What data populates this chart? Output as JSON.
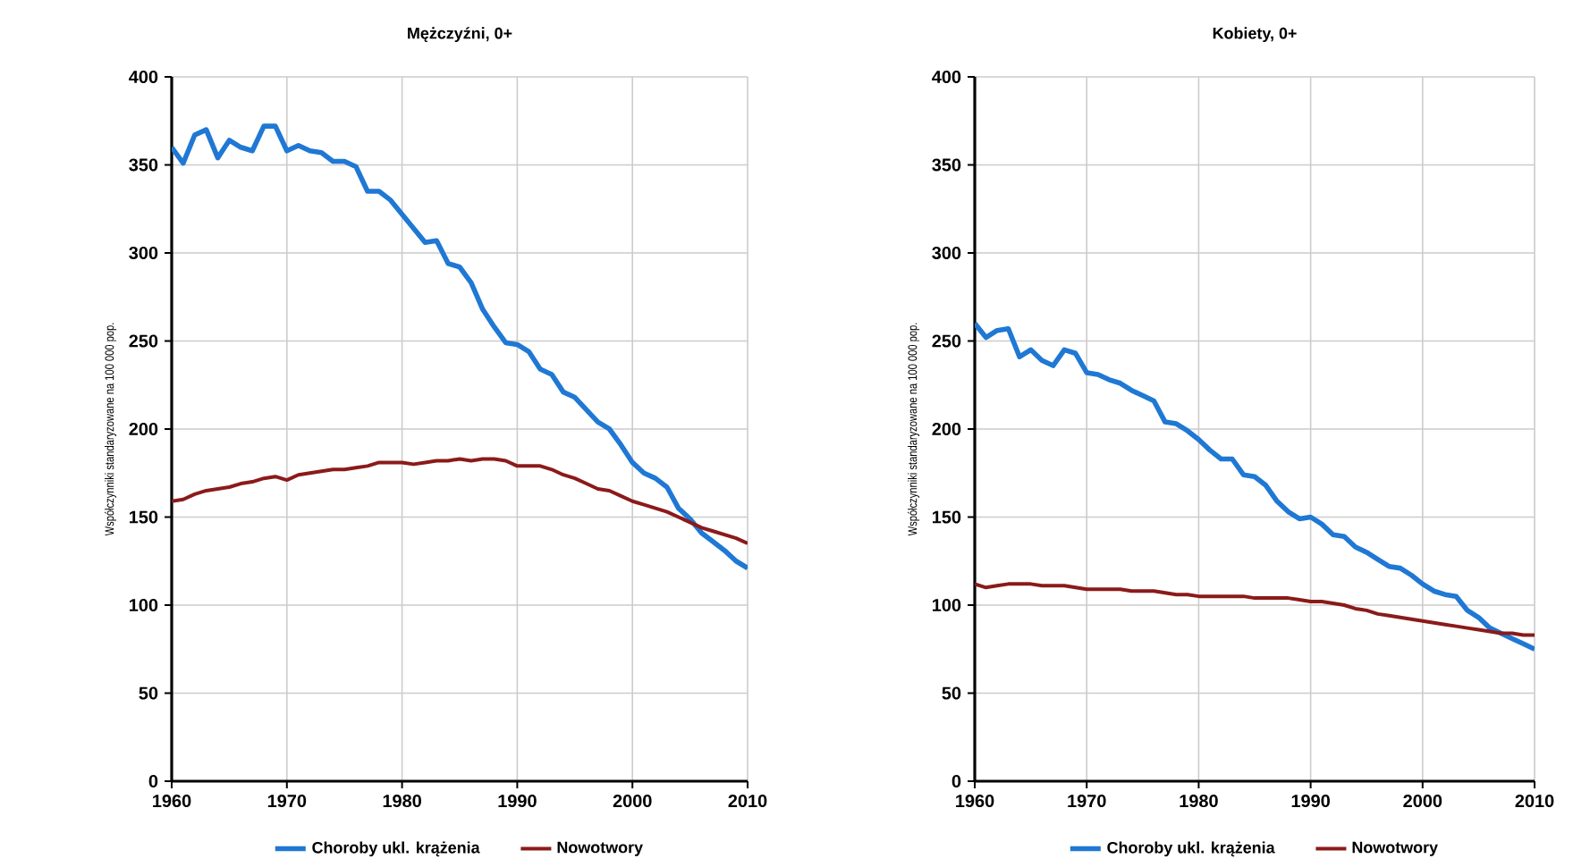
{
  "chart_data": [
    {
      "type": "line",
      "title": "Mężczyźni, 0+",
      "ylabel": "Współczynniki standaryzowane na 100 000 pop.",
      "x": [
        1960,
        1961,
        1962,
        1963,
        1964,
        1965,
        1966,
        1967,
        1968,
        1969,
        1970,
        1971,
        1972,
        1973,
        1974,
        1975,
        1976,
        1977,
        1978,
        1979,
        1980,
        1981,
        1982,
        1983,
        1984,
        1985,
        1986,
        1987,
        1988,
        1989,
        1990,
        1991,
        1992,
        1993,
        1994,
        1995,
        1996,
        1997,
        1998,
        1999,
        2000,
        2001,
        2002,
        2003,
        2004,
        2005,
        2006,
        2007,
        2008,
        2009,
        2010
      ],
      "xlim": [
        1960,
        2010
      ],
      "xticks": [
        1960,
        1970,
        1980,
        1990,
        2000,
        2010
      ],
      "ylim": [
        0,
        400
      ],
      "yticks": [
        0,
        50,
        100,
        150,
        200,
        250,
        300,
        350,
        400
      ],
      "grid": true,
      "legend": "bottom",
      "series": [
        {
          "name": "Choroby ukl. krążenia",
          "color": "#1f78d4",
          "values": [
            360,
            351,
            367,
            370,
            354,
            364,
            360,
            358,
            372,
            372,
            358,
            361,
            358,
            357,
            352,
            352,
            349,
            335,
            335,
            330,
            322,
            314,
            306,
            307,
            294,
            292,
            283,
            268,
            258,
            249,
            248,
            244,
            234,
            231,
            221,
            218,
            211,
            204,
            200,
            191,
            181,
            175,
            172,
            167,
            155,
            149,
            141,
            136,
            131,
            125,
            121
          ]
        },
        {
          "name": "Nowotwory",
          "color": "#8b1a1a",
          "values": [
            159,
            160,
            163,
            165,
            166,
            167,
            169,
            170,
            172,
            173,
            171,
            174,
            175,
            176,
            177,
            177,
            178,
            179,
            181,
            181,
            181,
            180,
            181,
            182,
            182,
            183,
            182,
            183,
            183,
            182,
            179,
            179,
            179,
            177,
            174,
            172,
            169,
            166,
            165,
            162,
            159,
            157,
            155,
            153,
            150,
            147,
            144,
            142,
            140,
            138,
            135
          ]
        }
      ]
    },
    {
      "type": "line",
      "title": "Kobiety, 0+",
      "ylabel": "Współczynniki standaryzowane na 100 000 pop.",
      "x": [
        1960,
        1961,
        1962,
        1963,
        1964,
        1965,
        1966,
        1967,
        1968,
        1969,
        1970,
        1971,
        1972,
        1973,
        1974,
        1975,
        1976,
        1977,
        1978,
        1979,
        1980,
        1981,
        1982,
        1983,
        1984,
        1985,
        1986,
        1987,
        1988,
        1989,
        1990,
        1991,
        1992,
        1993,
        1994,
        1995,
        1996,
        1997,
        1998,
        1999,
        2000,
        2001,
        2002,
        2003,
        2004,
        2005,
        2006,
        2007,
        2008,
        2009,
        2010
      ],
      "xlim": [
        1960,
        2010
      ],
      "xticks": [
        1960,
        1970,
        1980,
        1990,
        2000,
        2010
      ],
      "ylim": [
        0,
        400
      ],
      "yticks": [
        0,
        50,
        100,
        150,
        200,
        250,
        300,
        350,
        400
      ],
      "grid": true,
      "legend": "bottom",
      "series": [
        {
          "name": "Choroby ukl. krążenia",
          "color": "#1f78d4",
          "values": [
            260,
            252,
            256,
            257,
            241,
            245,
            239,
            236,
            245,
            243,
            232,
            231,
            228,
            226,
            222,
            219,
            216,
            204,
            203,
            199,
            194,
            188,
            183,
            183,
            174,
            173,
            168,
            159,
            153,
            149,
            150,
            146,
            140,
            139,
            133,
            130,
            126,
            122,
            121,
            117,
            112,
            108,
            106,
            105,
            97,
            93,
            87,
            84,
            81,
            78,
            75
          ]
        },
        {
          "name": "Nowotwory",
          "color": "#8b1a1a",
          "values": [
            112,
            110,
            111,
            112,
            112,
            112,
            111,
            111,
            111,
            110,
            109,
            109,
            109,
            109,
            108,
            108,
            108,
            107,
            106,
            106,
            105,
            105,
            105,
            105,
            105,
            104,
            104,
            104,
            104,
            103,
            102,
            102,
            101,
            100,
            98,
            97,
            95,
            94,
            93,
            92,
            91,
            90,
            89,
            88,
            87,
            86,
            85,
            84,
            84,
            83,
            83
          ]
        }
      ]
    }
  ]
}
